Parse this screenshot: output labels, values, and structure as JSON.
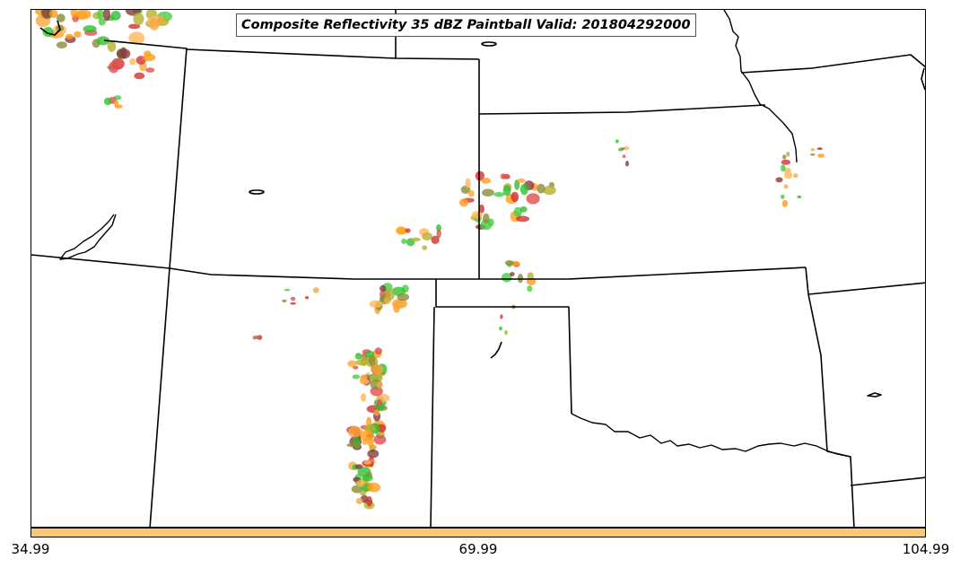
{
  "title": "Composite Reflectivity 35 dBZ Paintball Valid: 201804292000",
  "colorbar": {
    "color": "#ffc870",
    "ticks": [
      "34.99",
      "69.99",
      "104.99"
    ]
  },
  "map": {
    "type": "paintball-reflectivity-map",
    "boundary_color": "#000000",
    "member_colors": [
      "#ff9e1a",
      "#f7a840",
      "#e05050",
      "#d63030",
      "#43d143",
      "#8c8c3a",
      "#8a3b3b",
      "#b8b030",
      "#ffb85a",
      "#2fbf2f"
    ]
  }
}
